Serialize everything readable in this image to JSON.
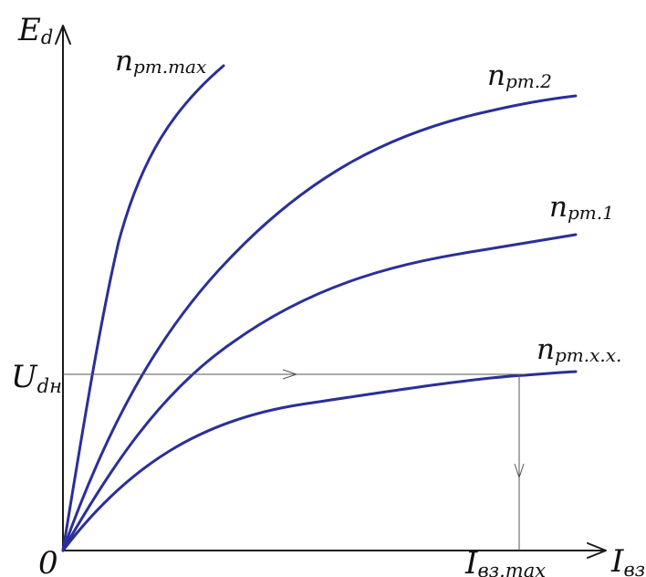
{
  "colors": {
    "axis": "#1a1a1a",
    "curve": "#2b2f98",
    "guide": "#555555",
    "text": "#111111"
  },
  "labels": {
    "y_axis_main": "E",
    "y_axis_sub": "d",
    "x_axis_main": "I",
    "x_axis_sub": "вз",
    "origin": "0",
    "u_dn_main": "U",
    "u_dn_sub": "dн",
    "i_max_main": "I",
    "i_max_sub": "вз.max",
    "curve_max_main": "n",
    "curve_max_sub": "рт.max",
    "curve_2_main": "n",
    "curve_2_sub": "рт.2",
    "curve_1_main": "n",
    "curve_1_sub": "рт.1",
    "curve_xx_main": "n",
    "curve_xx_sub": "рт.х.х."
  },
  "icons": {
    "y_axis_arrow": "arrow-up-icon",
    "x_axis_arrow": "arrow-right-icon",
    "udn_arrow": "arrow-right-icon",
    "imax_arrow": "arrow-down-icon"
  }
}
